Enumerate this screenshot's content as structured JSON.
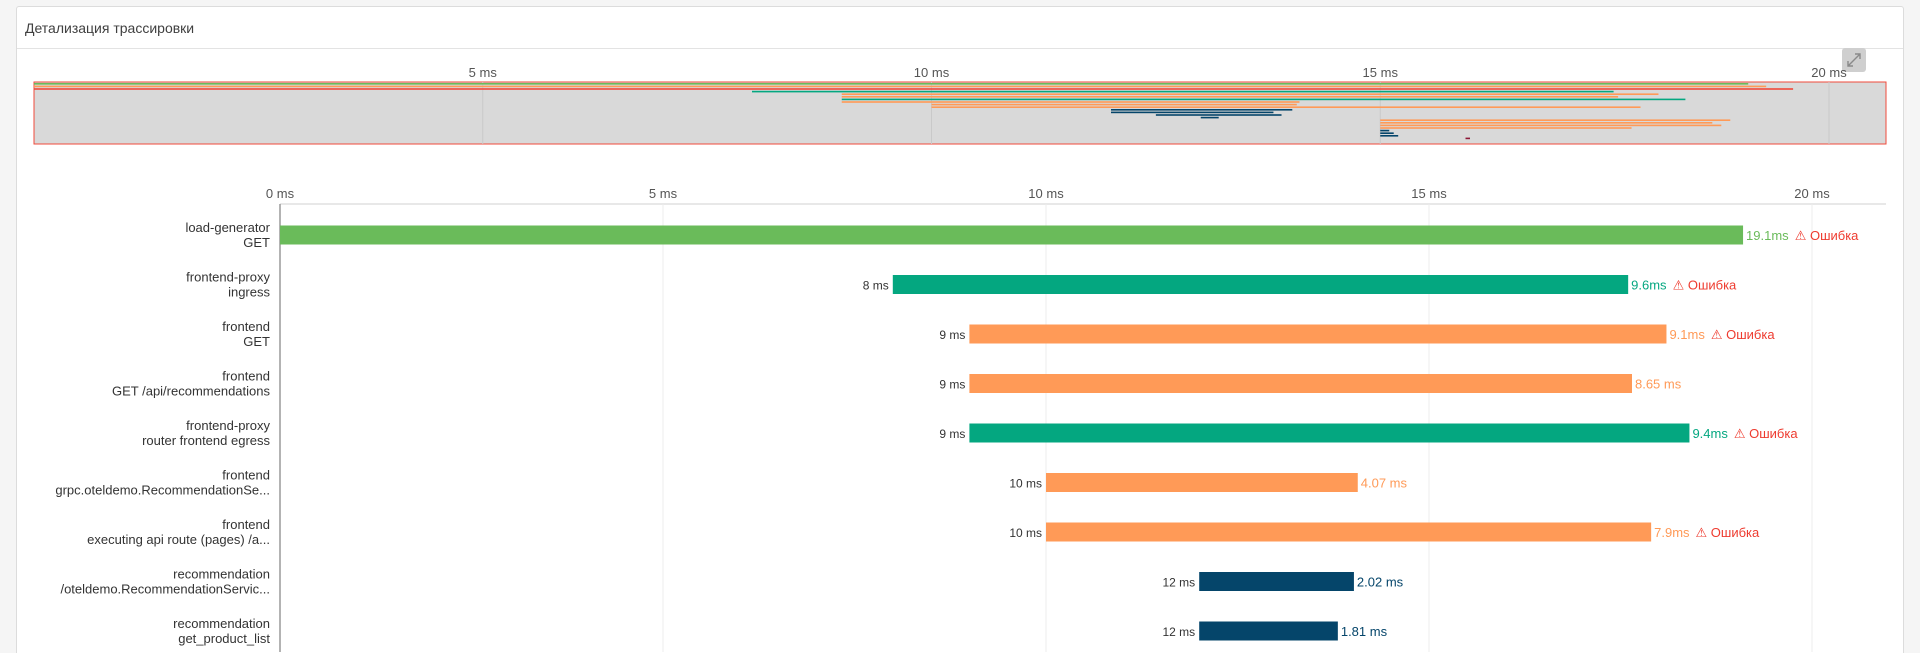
{
  "panel": {
    "title": "Детализация трассировки"
  },
  "expand_icon": "expand-diagonal-icon",
  "colors": {
    "load_generator": "#6abb5a",
    "frontend_proxy": "#04a780",
    "frontend": "#ff9a57",
    "recommendation": "#05456a",
    "product_catalog": "#8c1837",
    "error": "#ee3b2f",
    "minimap_bg": "#d9d9d9",
    "minimap_border": "#f04a3b"
  },
  "minimap_ticks": [
    "5 ms",
    "10 ms",
    "15 ms",
    "20 ms"
  ],
  "timeline_ticks": [
    "0 ms",
    "5 ms",
    "10 ms",
    "15 ms",
    "20 ms"
  ],
  "spans": [
    {
      "service": "load-generator",
      "operation": "GET",
      "start_ms": 0,
      "duration_ms": 19.1,
      "start_label": "",
      "duration_label": "19.1ms",
      "error_label": "⚠ Ошибка",
      "color": "#6abb5a"
    },
    {
      "service": "frontend-proxy",
      "operation": "ingress",
      "start_ms": 8,
      "duration_ms": 9.6,
      "start_label": "8 ms",
      "duration_label": "9.6ms",
      "error_label": "⚠ Ошибка",
      "color": "#04a780"
    },
    {
      "service": "frontend",
      "operation": "GET",
      "start_ms": 9,
      "duration_ms": 9.1,
      "start_label": "9 ms",
      "duration_label": "9.1ms",
      "error_label": "⚠ Ошибка",
      "color": "#ff9a57"
    },
    {
      "service": "frontend",
      "operation": "GET /api/recommendations",
      "start_ms": 9,
      "duration_ms": 8.65,
      "start_label": "9 ms",
      "duration_label": "8.65 ms",
      "error_label": "",
      "color": "#ff9a57"
    },
    {
      "service": "frontend-proxy",
      "operation": "router frontend egress",
      "start_ms": 9,
      "duration_ms": 9.4,
      "start_label": "9 ms",
      "duration_label": "9.4ms",
      "error_label": "⚠ Ошибка",
      "color": "#04a780"
    },
    {
      "service": "frontend",
      "operation": "grpc.oteldemo.RecommendationSe...",
      "start_ms": 10,
      "duration_ms": 4.07,
      "start_label": "10 ms",
      "duration_label": "4.07 ms",
      "error_label": "",
      "color": "#ff9a57"
    },
    {
      "service": "frontend",
      "operation": "executing api route (pages) /a...",
      "start_ms": 10,
      "duration_ms": 7.9,
      "start_label": "10 ms",
      "duration_label": "7.9ms",
      "error_label": "⚠ Ошибка",
      "color": "#ff9a57"
    },
    {
      "service": "recommendation",
      "operation": "/oteldemo.RecommendationServic...",
      "start_ms": 12,
      "duration_ms": 2.02,
      "start_label": "12 ms",
      "duration_label": "2.02 ms",
      "error_label": "",
      "color": "#05456a"
    },
    {
      "service": "recommendation",
      "operation": "get_product_list",
      "start_ms": 12,
      "duration_ms": 1.81,
      "start_label": "12 ms",
      "duration_label": "1.81 ms",
      "error_label": "",
      "color": "#05456a"
    }
  ],
  "minimap_spans": [
    {
      "start_ms": 0,
      "duration_ms": 19.1,
      "color": "#6abb5a"
    },
    {
      "start_ms": 0,
      "duration_ms": 19.3,
      "color": "#ff9a57"
    },
    {
      "start_ms": 0,
      "duration_ms": 19.6,
      "color": "#f04a3b"
    },
    {
      "start_ms": 8,
      "duration_ms": 9.6,
      "color": "#04a780"
    },
    {
      "start_ms": 9,
      "duration_ms": 9.1,
      "color": "#ff9a57"
    },
    {
      "start_ms": 9,
      "duration_ms": 8.65,
      "color": "#ff9a57"
    },
    {
      "start_ms": 9,
      "duration_ms": 9.4,
      "color": "#04a780"
    },
    {
      "start_ms": 9,
      "duration_ms": 5.1,
      "color": "#ff9a57"
    },
    {
      "start_ms": 10,
      "duration_ms": 4.07,
      "color": "#ff9a57"
    },
    {
      "start_ms": 10,
      "duration_ms": 7.9,
      "color": "#ff9a57"
    },
    {
      "start_ms": 12,
      "duration_ms": 2.02,
      "color": "#05456a"
    },
    {
      "start_ms": 12,
      "duration_ms": 1.81,
      "color": "#05456a"
    },
    {
      "start_ms": 12.5,
      "duration_ms": 1.4,
      "color": "#05456a"
    },
    {
      "start_ms": 13,
      "duration_ms": 0.2,
      "color": "#05456a"
    },
    {
      "start_ms": 15,
      "duration_ms": 3.9,
      "color": "#ff9a57"
    },
    {
      "start_ms": 15,
      "duration_ms": 3.7,
      "color": "#ff9a57"
    },
    {
      "start_ms": 15,
      "duration_ms": 3.8,
      "color": "#ff9a57"
    },
    {
      "start_ms": 15,
      "duration_ms": 2.8,
      "color": "#ff9a57"
    },
    {
      "start_ms": 15,
      "duration_ms": 0.1,
      "color": "#05456a"
    },
    {
      "start_ms": 15,
      "duration_ms": 0.15,
      "color": "#05456a"
    },
    {
      "start_ms": 15,
      "duration_ms": 0.2,
      "color": "#05456a"
    },
    {
      "start_ms": 15.95,
      "duration_ms": 0.05,
      "color": "#8c1837"
    }
  ]
}
